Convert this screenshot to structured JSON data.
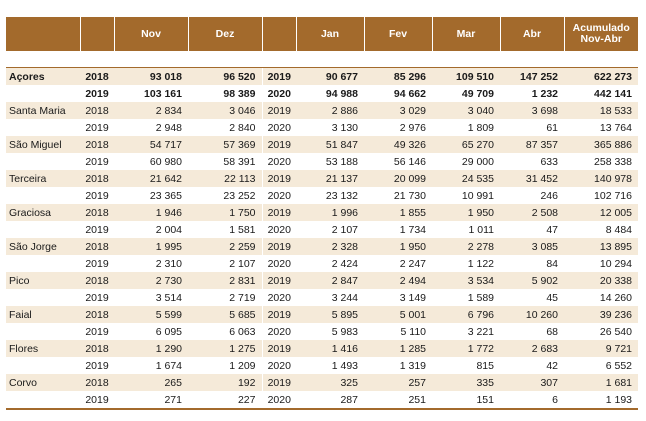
{
  "header": {
    "months": [
      "Nov",
      "Dez",
      "Jan",
      "Fev",
      "Mar",
      "Abr"
    ],
    "cumulative_line1": "Acumulado",
    "cumulative_line2": "Nov-Abr"
  },
  "rows": [
    {
      "region": "Açores",
      "y1": "2018",
      "nov": "93 018",
      "dez": "96 520",
      "y2": "2019",
      "jan": "90 677",
      "fev": "85 296",
      "mar": "109 510",
      "abr": "147 252",
      "acc": "622 273"
    },
    {
      "region": "",
      "y1": "2019",
      "nov": "103 161",
      "dez": "98 389",
      "y2": "2020",
      "jan": "94 988",
      "fev": "94 662",
      "mar": "49 709",
      "abr": "1 232",
      "acc": "442 141"
    },
    {
      "region": "Santa Maria",
      "y1": "2018",
      "nov": "2 834",
      "dez": "3 046",
      "y2": "2019",
      "jan": "2 886",
      "fev": "3 029",
      "mar": "3 040",
      "abr": "3 698",
      "acc": "18 533"
    },
    {
      "region": "",
      "y1": "2019",
      "nov": "2 948",
      "dez": "2 840",
      "y2": "2020",
      "jan": "3 130",
      "fev": "2 976",
      "mar": "1 809",
      "abr": "61",
      "acc": "13 764"
    },
    {
      "region": "São Miguel",
      "y1": "2018",
      "nov": "54 717",
      "dez": "57 369",
      "y2": "2019",
      "jan": "51 847",
      "fev": "49 326",
      "mar": "65 270",
      "abr": "87 357",
      "acc": "365 886"
    },
    {
      "region": "",
      "y1": "2019",
      "nov": "60 980",
      "dez": "58 391",
      "y2": "2020",
      "jan": "53 188",
      "fev": "56 146",
      "mar": "29 000",
      "abr": "633",
      "acc": "258 338"
    },
    {
      "region": "Terceira",
      "y1": "2018",
      "nov": "21 642",
      "dez": "22 113",
      "y2": "2019",
      "jan": "21 137",
      "fev": "20 099",
      "mar": "24 535",
      "abr": "31 452",
      "acc": "140 978"
    },
    {
      "region": "",
      "y1": "2019",
      "nov": "23 365",
      "dez": "23 252",
      "y2": "2020",
      "jan": "23 132",
      "fev": "21 730",
      "mar": "10 991",
      "abr": "246",
      "acc": "102 716"
    },
    {
      "region": "Graciosa",
      "y1": "2018",
      "nov": "1 946",
      "dez": "1 750",
      "y2": "2019",
      "jan": "1 996",
      "fev": "1 855",
      "mar": "1 950",
      "abr": "2 508",
      "acc": "12 005"
    },
    {
      "region": "",
      "y1": "2019",
      "nov": "2 004",
      "dez": "1 581",
      "y2": "2020",
      "jan": "2 107",
      "fev": "1 734",
      "mar": "1 011",
      "abr": "47",
      "acc": "8 484"
    },
    {
      "region": "São Jorge",
      "y1": "2018",
      "nov": "1 995",
      "dez": "2 259",
      "y2": "2019",
      "jan": "2 328",
      "fev": "1 950",
      "mar": "2 278",
      "abr": "3 085",
      "acc": "13 895"
    },
    {
      "region": "",
      "y1": "2019",
      "nov": "2 310",
      "dez": "2 107",
      "y2": "2020",
      "jan": "2 424",
      "fev": "2 247",
      "mar": "1 122",
      "abr": "84",
      "acc": "10 294"
    },
    {
      "region": "Pico",
      "y1": "2018",
      "nov": "2 730",
      "dez": "2 831",
      "y2": "2019",
      "jan": "2 847",
      "fev": "2 494",
      "mar": "3 534",
      "abr": "5 902",
      "acc": "20 338"
    },
    {
      "region": "",
      "y1": "2019",
      "nov": "3 514",
      "dez": "2 719",
      "y2": "2020",
      "jan": "3 244",
      "fev": "3 149",
      "mar": "1 589",
      "abr": "45",
      "acc": "14 260"
    },
    {
      "region": "Faial",
      "y1": "2018",
      "nov": "5 599",
      "dez": "5 685",
      "y2": "2019",
      "jan": "5 895",
      "fev": "5 001",
      "mar": "6 796",
      "abr": "10 260",
      "acc": "39 236"
    },
    {
      "region": "",
      "y1": "2019",
      "nov": "6 095",
      "dez": "6 063",
      "y2": "2020",
      "jan": "5 983",
      "fev": "5 110",
      "mar": "3 221",
      "abr": "68",
      "acc": "26 540"
    },
    {
      "region": "Flores",
      "y1": "2018",
      "nov": "1 290",
      "dez": "1 275",
      "y2": "2019",
      "jan": "1 416",
      "fev": "1 285",
      "mar": "1 772",
      "abr": "2 683",
      "acc": "9 721"
    },
    {
      "region": "",
      "y1": "2019",
      "nov": "1 674",
      "dez": "1 209",
      "y2": "2020",
      "jan": "1 493",
      "fev": "1 319",
      "mar": "815",
      "abr": "42",
      "acc": "6 552"
    },
    {
      "region": "Corvo",
      "y1": "2018",
      "nov": "265",
      "dez": "192",
      "y2": "2019",
      "jan": "325",
      "fev": "257",
      "mar": "335",
      "abr": "307",
      "acc": "1 681"
    },
    {
      "region": "",
      "y1": "2019",
      "nov": "271",
      "dez": "227",
      "y2": "2020",
      "jan": "287",
      "fev": "251",
      "mar": "151",
      "abr": "6",
      "acc": "1 193"
    }
  ],
  "colors": {
    "header_bg": "#a36a2c",
    "row_shade": "#f5ead9"
  }
}
